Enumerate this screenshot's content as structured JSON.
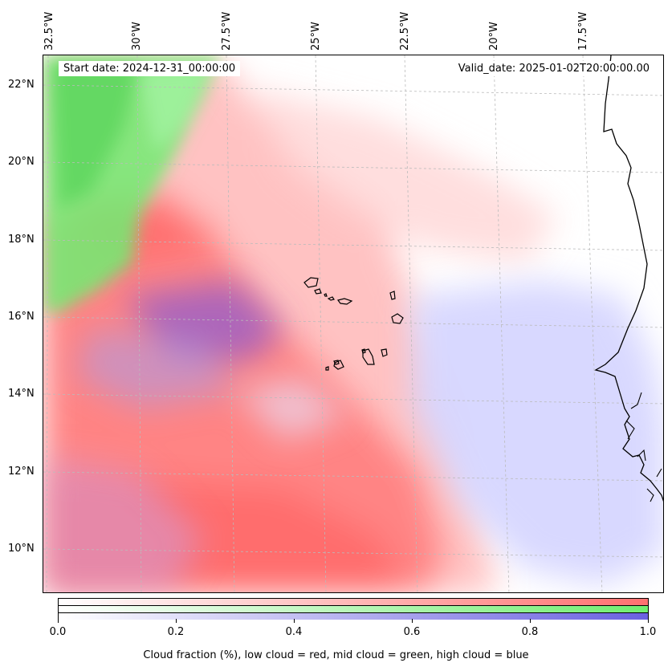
{
  "header": {
    "start_date": "Start date: 2024-12-31_00:00:00",
    "valid_date": "Valid_date: 2025-01-02T20:00:00.00"
  },
  "axes": {
    "longitude_labels": [
      "32.5°W",
      "30°W",
      "27.5°W",
      "25°W",
      "22.5°W",
      "20°W",
      "17.5°W"
    ],
    "latitude_labels": [
      "22°N",
      "20°N",
      "18°N",
      "16°N",
      "14°N",
      "12°N",
      "10°N"
    ]
  },
  "colorbar": {
    "ticks": [
      "0.0",
      "0.2",
      "0.4",
      "0.6",
      "0.8",
      "1.0"
    ],
    "label": "Cloud fraction (%), low cloud = red, mid cloud = green, high cloud = blue",
    "colors": {
      "low": "#ff7070",
      "mid": "#70ee70",
      "high": "#6a60e0"
    }
  },
  "map": {
    "grid": "dashed",
    "features": [
      "coastline-africa",
      "cape-verde-islands"
    ]
  }
}
